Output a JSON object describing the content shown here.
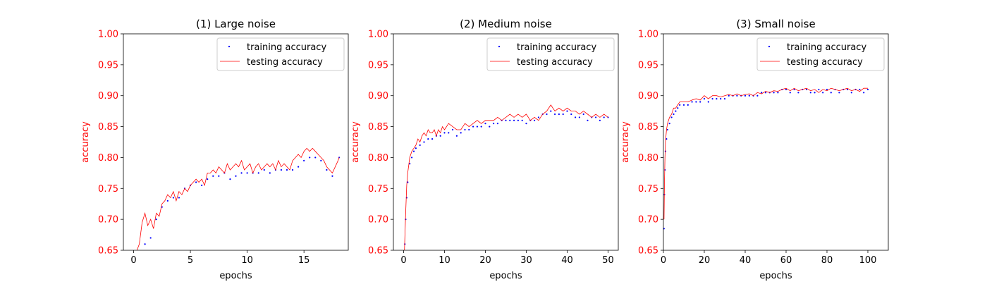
{
  "chart_data": [
    {
      "type": "line",
      "title": "(1) Large noise",
      "xlabel": "epochs",
      "ylabel": "accuracy",
      "xlim": [
        -0.9,
        18.9
      ],
      "ylim": [
        0.65,
        1.0
      ],
      "xticks": [
        0,
        5,
        10,
        15
      ],
      "xtick_labels": [
        "0",
        "5",
        "10",
        "15"
      ],
      "yticks": [
        0.65,
        0.7,
        0.75,
        0.8,
        0.85,
        0.9,
        0.95,
        1.0
      ],
      "ytick_labels": [
        "0.65",
        "0.70",
        "0.75",
        "0.80",
        "0.85",
        "0.90",
        "0.95",
        "1.00"
      ],
      "ytick_color": "#ff0000",
      "ylabel_color": "#ff0000",
      "legend_position": "top-right",
      "series": [
        {
          "name": "training accuracy",
          "style": "points",
          "color": "#0000ff",
          "x": [
            0.5,
            1,
            1.5,
            2,
            2.5,
            3,
            3.5,
            4,
            4.5,
            5,
            5.5,
            6,
            6.5,
            7,
            7.5,
            8,
            8.5,
            9,
            9.5,
            10,
            10.5,
            11,
            11.5,
            12,
            12.5,
            13,
            13.5,
            14,
            14.5,
            15,
            15.5,
            16,
            16.5,
            17,
            17.5,
            18.1
          ],
          "y": [
            0.62,
            0.66,
            0.67,
            0.7,
            0.72,
            0.73,
            0.735,
            0.735,
            0.75,
            0.755,
            0.76,
            0.755,
            0.765,
            0.77,
            0.77,
            0.775,
            0.765,
            0.77,
            0.775,
            0.775,
            0.775,
            0.775,
            0.78,
            0.775,
            0.78,
            0.78,
            0.78,
            0.78,
            0.785,
            0.795,
            0.8,
            0.8,
            0.795,
            0.78,
            0.77,
            0.8
          ]
        },
        {
          "name": "testing accuracy",
          "style": "line",
          "color": "#ff0000",
          "x": [
            0.3,
            0.5,
            0.75,
            1,
            1.25,
            1.5,
            1.75,
            2,
            2.25,
            2.5,
            2.75,
            3,
            3.25,
            3.5,
            3.75,
            4,
            4.25,
            4.5,
            4.75,
            5,
            5.25,
            5.5,
            5.75,
            6,
            6.25,
            6.5,
            6.75,
            7,
            7.25,
            7.5,
            7.75,
            8,
            8.25,
            8.5,
            8.75,
            9,
            9.25,
            9.5,
            9.75,
            10,
            10.25,
            10.5,
            10.75,
            11,
            11.25,
            11.5,
            11.75,
            12,
            12.25,
            12.5,
            12.75,
            13,
            13.25,
            13.5,
            13.75,
            14,
            14.25,
            14.5,
            14.75,
            15,
            15.25,
            15.5,
            15.75,
            16,
            16.25,
            16.5,
            16.75,
            17,
            17.25,
            17.5,
            17.75,
            18,
            18.1
          ],
          "y": [
            0.65,
            0.66,
            0.695,
            0.71,
            0.69,
            0.7,
            0.685,
            0.71,
            0.705,
            0.725,
            0.73,
            0.74,
            0.735,
            0.745,
            0.73,
            0.745,
            0.74,
            0.75,
            0.745,
            0.755,
            0.76,
            0.765,
            0.76,
            0.765,
            0.755,
            0.775,
            0.775,
            0.78,
            0.775,
            0.785,
            0.78,
            0.775,
            0.79,
            0.78,
            0.785,
            0.79,
            0.785,
            0.795,
            0.78,
            0.785,
            0.79,
            0.775,
            0.785,
            0.79,
            0.78,
            0.785,
            0.79,
            0.785,
            0.79,
            0.78,
            0.795,
            0.785,
            0.79,
            0.785,
            0.78,
            0.795,
            0.8,
            0.805,
            0.8,
            0.81,
            0.815,
            0.81,
            0.815,
            0.81,
            0.805,
            0.8,
            0.795,
            0.785,
            0.78,
            0.775,
            0.785,
            0.795,
            0.8
          ]
        }
      ]
    },
    {
      "type": "line",
      "title": "(2) Medium noise",
      "xlabel": "epochs",
      "ylabel": "accuracy",
      "xlim": [
        -2.5,
        52.5
      ],
      "ylim": [
        0.65,
        1.0
      ],
      "xticks": [
        0,
        10,
        20,
        30,
        40,
        50
      ],
      "xtick_labels": [
        "0",
        "10",
        "20",
        "30",
        "40",
        "50"
      ],
      "yticks": [
        0.65,
        0.7,
        0.75,
        0.8,
        0.85,
        0.9,
        0.95,
        1.0
      ],
      "ytick_labels": [
        "0.65",
        "0.70",
        "0.75",
        "0.80",
        "0.85",
        "0.90",
        "0.95",
        "1.00"
      ],
      "ytick_color": "#ff0000",
      "ylabel_color": "#ff0000",
      "legend_position": "top-right",
      "series": [
        {
          "name": "training accuracy",
          "style": "points",
          "color": "#0000ff",
          "x": [
            0.3,
            0.5,
            0.75,
            1,
            1.5,
            2,
            2.5,
            3,
            4,
            5,
            6,
            7,
            8,
            9,
            10,
            11,
            12,
            13,
            14,
            15,
            16,
            17,
            18,
            19,
            20,
            21,
            22,
            23,
            24,
            25,
            26,
            27,
            28,
            29,
            30,
            31,
            32,
            33,
            34,
            35,
            36,
            37,
            38,
            39,
            40,
            41,
            42,
            43,
            44,
            45,
            46,
            47,
            48,
            49,
            50
          ],
          "y": [
            0.66,
            0.7,
            0.735,
            0.76,
            0.79,
            0.8,
            0.81,
            0.815,
            0.82,
            0.825,
            0.83,
            0.83,
            0.835,
            0.835,
            0.84,
            0.84,
            0.845,
            0.835,
            0.84,
            0.845,
            0.845,
            0.85,
            0.85,
            0.85,
            0.855,
            0.85,
            0.855,
            0.855,
            0.86,
            0.86,
            0.86,
            0.86,
            0.86,
            0.86,
            0.855,
            0.86,
            0.86,
            0.865,
            0.87,
            0.87,
            0.875,
            0.87,
            0.87,
            0.87,
            0.875,
            0.87,
            0.865,
            0.865,
            0.87,
            0.86,
            0.865,
            0.865,
            0.86,
            0.865,
            0.865
          ]
        },
        {
          "name": "testing accuracy",
          "style": "line",
          "color": "#ff0000",
          "x": [
            0.2,
            0.5,
            0.75,
            1,
            1.5,
            2,
            2.5,
            3,
            3.5,
            4,
            4.5,
            5,
            5.5,
            6,
            6.5,
            7,
            7.5,
            8,
            8.5,
            9,
            9.5,
            10,
            11,
            12,
            13,
            14,
            15,
            16,
            17,
            18,
            19,
            20,
            21,
            22,
            23,
            24,
            25,
            26,
            27,
            28,
            29,
            30,
            31,
            32,
            33,
            34,
            35,
            36,
            37,
            38,
            39,
            40,
            41,
            42,
            43,
            44,
            45,
            46,
            47,
            48,
            49,
            50
          ],
          "y": [
            0.65,
            0.71,
            0.755,
            0.775,
            0.8,
            0.81,
            0.815,
            0.82,
            0.83,
            0.825,
            0.835,
            0.84,
            0.835,
            0.845,
            0.84,
            0.84,
            0.845,
            0.835,
            0.845,
            0.84,
            0.85,
            0.845,
            0.855,
            0.85,
            0.845,
            0.845,
            0.855,
            0.85,
            0.855,
            0.86,
            0.855,
            0.86,
            0.86,
            0.86,
            0.865,
            0.86,
            0.865,
            0.87,
            0.865,
            0.87,
            0.865,
            0.87,
            0.86,
            0.865,
            0.86,
            0.87,
            0.875,
            0.885,
            0.875,
            0.88,
            0.875,
            0.88,
            0.875,
            0.875,
            0.87,
            0.875,
            0.87,
            0.865,
            0.87,
            0.865,
            0.87,
            0.865
          ]
        }
      ]
    },
    {
      "type": "line",
      "title": "(3) Small noise",
      "xlabel": "epochs",
      "ylabel": "accuracy",
      "xlim": [
        0,
        110
      ],
      "ylim": [
        0.65,
        1.0
      ],
      "xticks": [
        0,
        20,
        40,
        60,
        80,
        100
      ],
      "xtick_labels": [
        "0",
        "20",
        "40",
        "60",
        "80",
        "100"
      ],
      "yticks": [
        0.65,
        0.7,
        0.75,
        0.8,
        0.85,
        0.9,
        0.95,
        1.0
      ],
      "ytick_labels": [
        "0.65",
        "0.70",
        "0.75",
        "0.80",
        "0.85",
        "0.90",
        "0.95",
        "1.00"
      ],
      "ytick_color": "#ff0000",
      "ylabel_color": "#ff0000",
      "legend_position": "top-right",
      "series": [
        {
          "name": "training accuracy",
          "style": "points",
          "color": "#0000ff",
          "x": [
            0.3,
            0.5,
            0.75,
            1,
            1.5,
            2,
            3,
            4,
            5,
            6,
            7,
            8,
            10,
            12,
            14,
            16,
            18,
            20,
            22,
            24,
            26,
            28,
            30,
            32,
            34,
            36,
            38,
            40,
            42,
            44,
            46,
            48,
            50,
            52,
            54,
            56,
            58,
            60,
            62,
            64,
            66,
            68,
            70,
            72,
            74,
            76,
            78,
            80,
            82,
            84,
            86,
            88,
            90,
            92,
            94,
            96,
            98,
            100
          ],
          "y": [
            0.685,
            0.74,
            0.78,
            0.81,
            0.83,
            0.845,
            0.855,
            0.865,
            0.87,
            0.875,
            0.88,
            0.885,
            0.885,
            0.885,
            0.89,
            0.89,
            0.89,
            0.895,
            0.89,
            0.895,
            0.895,
            0.895,
            0.895,
            0.9,
            0.9,
            0.9,
            0.9,
            0.9,
            0.9,
            0.9,
            0.9,
            0.905,
            0.905,
            0.905,
            0.905,
            0.905,
            0.91,
            0.91,
            0.905,
            0.91,
            0.905,
            0.91,
            0.91,
            0.905,
            0.905,
            0.91,
            0.905,
            0.91,
            0.905,
            0.91,
            0.905,
            0.91,
            0.91,
            0.905,
            0.91,
            0.91,
            0.905,
            0.91
          ]
        },
        {
          "name": "testing accuracy",
          "style": "line",
          "color": "#ff0000",
          "x": [
            0.3,
            0.5,
            0.75,
            1,
            1.5,
            2,
            3,
            4,
            5,
            6,
            7,
            8,
            9,
            10,
            12,
            14,
            16,
            18,
            20,
            22,
            24,
            26,
            28,
            30,
            32,
            34,
            36,
            38,
            40,
            42,
            44,
            46,
            48,
            50,
            52,
            54,
            56,
            58,
            60,
            62,
            64,
            66,
            68,
            70,
            72,
            74,
            76,
            78,
            80,
            82,
            84,
            86,
            88,
            90,
            92,
            94,
            96,
            98,
            100
          ],
          "y": [
            0.7,
            0.76,
            0.8,
            0.825,
            0.845,
            0.855,
            0.865,
            0.87,
            0.88,
            0.88,
            0.885,
            0.89,
            0.89,
            0.89,
            0.89,
            0.893,
            0.895,
            0.893,
            0.9,
            0.895,
            0.9,
            0.9,
            0.898,
            0.9,
            0.902,
            0.9,
            0.903,
            0.9,
            0.902,
            0.903,
            0.9,
            0.905,
            0.903,
            0.907,
            0.905,
            0.908,
            0.907,
            0.91,
            0.912,
            0.908,
            0.912,
            0.908,
            0.91,
            0.912,
            0.908,
            0.91,
            0.905,
            0.91,
            0.908,
            0.912,
            0.91,
            0.908,
            0.91,
            0.912,
            0.908,
            0.91,
            0.907,
            0.912,
            0.912
          ]
        }
      ]
    }
  ]
}
